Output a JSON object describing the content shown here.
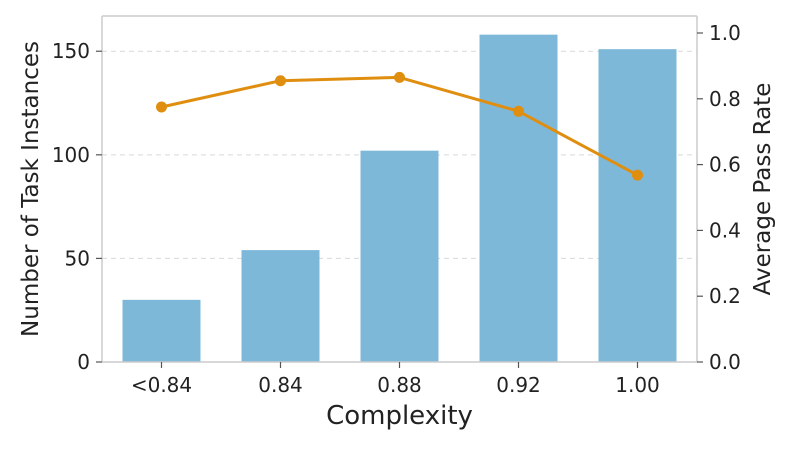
{
  "chart_data": {
    "type": "bar",
    "categories": [
      "<0.84",
      "0.84",
      "0.88",
      "0.92",
      "1.00"
    ],
    "series": [
      {
        "type": "bar",
        "axis": "left",
        "values": [
          30,
          54,
          102,
          158,
          151
        ]
      },
      {
        "type": "line",
        "axis": "right",
        "values": [
          0.775,
          0.855,
          0.865,
          0.762,
          0.568
        ]
      }
    ],
    "xlabel": "Complexity",
    "ylabel": "Number of Task Instances",
    "y2label": "Average Pass Rate",
    "ylim": [
      0,
      167
    ],
    "y2lim": [
      0,
      1.0
    ],
    "yticks": [
      "0",
      "50",
      "100",
      "150"
    ],
    "y2ticks": [
      "0.0",
      "0.2",
      "0.4",
      "0.6",
      "0.8",
      "1.0"
    ],
    "grid": true,
    "colors": {
      "bar": "#7eb8d9",
      "line": "#e08e10",
      "axis": "#cccccc",
      "grid": "#d9d9d9"
    }
  }
}
